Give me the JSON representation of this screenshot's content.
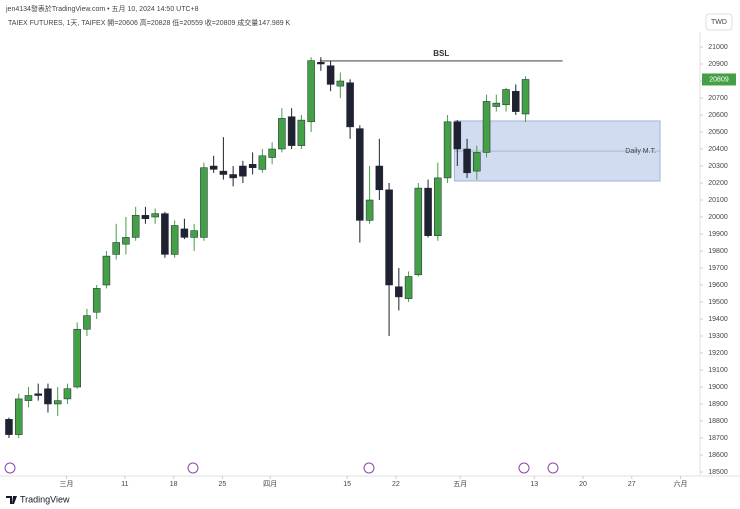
{
  "header": {
    "byline": "jen4134發表於TradingView.com • 五月 10, 2024 14:50 UTC+8",
    "symbol": "TAIEX FUTURES, 1天, TAIFEX  開=20606 高=20828 低=20559 收=20809 成交量147.989 K",
    "currency": "TWD"
  },
  "footer": {
    "brand": "TradingView"
  },
  "chart_data": {
    "type": "candlestick",
    "x": [
      0,
      1,
      2,
      3,
      4,
      5,
      6,
      7,
      8,
      9,
      10,
      11,
      12,
      13,
      14,
      15,
      16,
      17,
      18,
      19,
      20,
      21,
      22,
      23,
      24,
      25,
      26,
      27,
      28,
      29,
      30,
      31,
      32,
      33,
      34,
      35,
      36,
      37,
      38,
      39,
      40,
      41,
      42,
      43,
      44,
      45,
      46,
      47,
      48,
      49,
      50,
      51,
      52,
      53
    ],
    "open": [
      18810,
      18720,
      18920,
      18960,
      18990,
      18900,
      18930,
      19000,
      19340,
      19440,
      19600,
      19780,
      19840,
      19880,
      20010,
      20000,
      20020,
      19780,
      19930,
      19880,
      19880,
      20300,
      20270,
      20250,
      20300,
      20310,
      20280,
      20350,
      20400,
      20590,
      20420,
      20560,
      20910,
      20890,
      20770,
      20790,
      20520,
      19980,
      20300,
      20160,
      19590,
      19520,
      19660,
      20170,
      19890,
      20230,
      20560,
      20400,
      20270,
      20380,
      20650,
      20660,
      20740,
      20606
    ],
    "high": [
      18820,
      18960,
      19000,
      19020,
      19020,
      19000,
      19020,
      19380,
      19460,
      19600,
      19800,
      19960,
      20000,
      20060,
      20060,
      20050,
      20030,
      19980,
      19990,
      19960,
      20320,
      20360,
      20470,
      20300,
      20330,
      20380,
      20400,
      20440,
      20640,
      20640,
      20600,
      20940,
      20940,
      20920,
      20850,
      20810,
      20540,
      20300,
      20460,
      20200,
      19700,
      19680,
      20200,
      20220,
      20320,
      20600,
      20570,
      20460,
      20420,
      20720,
      20720,
      20760,
      20780,
      20828
    ],
    "low": [
      18700,
      18700,
      18880,
      18920,
      18850,
      18830,
      18900,
      18990,
      19300,
      19400,
      19580,
      19750,
      19780,
      19860,
      19960,
      19960,
      19760,
      19760,
      19870,
      19800,
      19860,
      20260,
      20220,
      20180,
      20200,
      20250,
      20260,
      20310,
      20380,
      20400,
      20400,
      20500,
      20860,
      20740,
      20700,
      20460,
      19850,
      19960,
      20100,
      19300,
      19450,
      19500,
      19650,
      19880,
      19860,
      20200,
      20300,
      20230,
      20220,
      20350,
      20620,
      20620,
      20600,
      20559
    ],
    "close": [
      18720,
      18930,
      18950,
      18950,
      18900,
      18920,
      18990,
      19340,
      19420,
      19580,
      19770,
      19850,
      19880,
      20010,
      19990,
      20020,
      19780,
      19950,
      19880,
      19920,
      20290,
      20280,
      20250,
      20230,
      20240,
      20290,
      20360,
      20400,
      20580,
      20420,
      20570,
      20920,
      20900,
      20780,
      20800,
      20530,
      19980,
      20100,
      20160,
      19600,
      19530,
      19650,
      20170,
      19890,
      20230,
      20560,
      20400,
      20260,
      20380,
      20680,
      20670,
      20750,
      20620,
      20809
    ],
    "up_color": "#43a047",
    "down_color": "#1f2230",
    "xlim": [
      -0.92,
      70.9
    ],
    "ylim": [
      18453,
      21100
    ],
    "xticks": [
      {
        "value": 5.9,
        "label": "三月"
      },
      {
        "value": 11.9,
        "label": "11"
      },
      {
        "value": 16.9,
        "label": "18"
      },
      {
        "value": 21.9,
        "label": "25"
      },
      {
        "value": 26.8,
        "label": "四月"
      },
      {
        "value": 34.7,
        "label": "15"
      },
      {
        "value": 39.7,
        "label": "22"
      },
      {
        "value": 46.3,
        "label": "五月"
      },
      {
        "value": 53.9,
        "label": "13"
      },
      {
        "value": 58.9,
        "label": "20"
      },
      {
        "value": 63.9,
        "label": "27"
      },
      {
        "value": 68.9,
        "label": "六月"
      }
    ],
    "yticks": [
      18500,
      18600,
      18700,
      18800,
      18900,
      19000,
      19100,
      19200,
      19300,
      19400,
      19500,
      19600,
      19700,
      19800,
      19900,
      20000,
      20100,
      20200,
      20300,
      20400,
      20500,
      20600,
      20700,
      20800,
      20900,
      21000
    ],
    "level": {
      "label": "BSL",
      "y": 20918,
      "x": [
        31.9,
        56.8
      ]
    },
    "zone": {
      "label": "Daily M.T.",
      "y": [
        20212,
        20565
      ],
      "mid": 20388,
      "x": [
        45.7,
        66.8
      ],
      "color": "#c5d3ec"
    }
  }
}
